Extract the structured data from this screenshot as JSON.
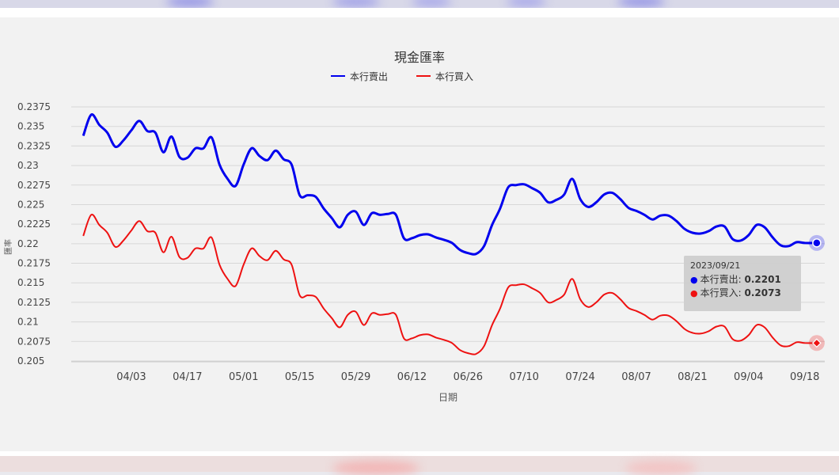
{
  "colors": {
    "sell": "#0000ee",
    "buy": "#ee1111",
    "grid": "#d7d7d7",
    "panel_bg": "#f2f2f2"
  },
  "tooltip": {
    "date": "2023/09/21",
    "sell_label": "本行賣出:",
    "sell_value": "0.2201",
    "buy_label": "本行買入:",
    "buy_value": "0.2073"
  },
  "chart_data": {
    "type": "line",
    "title": "現金匯率",
    "xlabel": "日期",
    "ylabel": "匯率",
    "ylim": [
      0.205,
      0.2375
    ],
    "y_ticks": [
      "0.2375",
      "0.235",
      "0.2325",
      "0.23",
      "0.2275",
      "0.225",
      "0.2225",
      "0.22",
      "0.2175",
      "0.215",
      "0.2125",
      "0.21",
      "0.2075",
      "0.205"
    ],
    "x_tick_labels": [
      "04/03",
      "04/17",
      "05/01",
      "05/15",
      "05/29",
      "06/12",
      "06/26",
      "07/10",
      "07/24",
      "08/07",
      "08/21",
      "09/04",
      "09/18"
    ],
    "grid": true,
    "legend_position": "top-center",
    "series": [
      {
        "name": "本行賣出",
        "x": [
          "2023/03/22",
          "2023/03/24",
          "2023/03/26",
          "2023/03/28",
          "2023/03/30",
          "2023/04/01",
          "2023/04/03",
          "2023/04/05",
          "2023/04/07",
          "2023/04/09",
          "2023/04/11",
          "2023/04/13",
          "2023/04/15",
          "2023/04/17",
          "2023/04/19",
          "2023/04/21",
          "2023/04/23",
          "2023/04/25",
          "2023/04/27",
          "2023/04/29",
          "2023/05/01",
          "2023/05/03",
          "2023/05/05",
          "2023/05/07",
          "2023/05/09",
          "2023/05/11",
          "2023/05/13",
          "2023/05/15",
          "2023/05/17",
          "2023/05/19",
          "2023/05/21",
          "2023/05/23",
          "2023/05/25",
          "2023/05/27",
          "2023/05/29",
          "2023/05/31",
          "2023/06/02",
          "2023/06/04",
          "2023/06/06",
          "2023/06/08",
          "2023/06/10",
          "2023/06/12",
          "2023/06/14",
          "2023/06/16",
          "2023/06/18",
          "2023/06/20",
          "2023/06/22",
          "2023/06/24",
          "2023/06/26",
          "2023/06/28",
          "2023/06/30",
          "2023/07/02",
          "2023/07/04",
          "2023/07/06",
          "2023/07/08",
          "2023/07/10",
          "2023/07/12",
          "2023/07/14",
          "2023/07/16",
          "2023/07/18",
          "2023/07/20",
          "2023/07/22",
          "2023/07/24",
          "2023/07/26",
          "2023/07/28",
          "2023/07/30",
          "2023/08/01",
          "2023/08/03",
          "2023/08/05",
          "2023/08/07",
          "2023/08/09",
          "2023/08/11",
          "2023/08/13",
          "2023/08/15",
          "2023/08/17",
          "2023/08/19",
          "2023/08/21",
          "2023/08/23",
          "2023/08/25",
          "2023/08/27",
          "2023/08/29",
          "2023/08/31",
          "2023/09/02",
          "2023/09/04",
          "2023/09/06",
          "2023/09/08",
          "2023/09/10",
          "2023/09/12",
          "2023/09/14",
          "2023/09/16",
          "2023/09/18",
          "2023/09/21"
        ],
        "values": [
          0.2338,
          0.2365,
          0.2352,
          0.2342,
          0.2324,
          0.2332,
          0.2345,
          0.2357,
          0.2344,
          0.2342,
          0.2317,
          0.2337,
          0.2311,
          0.231,
          0.2322,
          0.2322,
          0.2336,
          0.2301,
          0.2283,
          0.2274,
          0.2301,
          0.2322,
          0.2312,
          0.2307,
          0.2319,
          0.2308,
          0.2301,
          0.2262,
          0.2262,
          0.226,
          0.2245,
          0.2233,
          0.2221,
          0.2237,
          0.2241,
          0.2224,
          0.2239,
          0.2237,
          0.2238,
          0.2237,
          0.2207,
          0.2207,
          0.2211,
          0.2212,
          0.2208,
          0.2205,
          0.2201,
          0.2192,
          0.2188,
          0.2187,
          0.2197,
          0.2224,
          0.2245,
          0.2272,
          0.2275,
          0.2276,
          0.2271,
          0.2265,
          0.2253,
          0.2256,
          0.2263,
          0.2283,
          0.2257,
          0.2247,
          0.2253,
          0.2263,
          0.2265,
          0.2257,
          0.2246,
          0.2242,
          0.2237,
          0.2231,
          0.2236,
          0.2236,
          0.2229,
          0.2219,
          0.2214,
          0.2213,
          0.2216,
          0.2222,
          0.2222,
          0.2206,
          0.2204,
          0.2211,
          0.2224,
          0.2221,
          0.2208,
          0.2198,
          0.2197,
          0.2202,
          0.2201,
          0.2201
        ]
      },
      {
        "name": "本行買入",
        "x": [
          "2023/03/22",
          "2023/03/24",
          "2023/03/26",
          "2023/03/28",
          "2023/03/30",
          "2023/04/01",
          "2023/04/03",
          "2023/04/05",
          "2023/04/07",
          "2023/04/09",
          "2023/04/11",
          "2023/04/13",
          "2023/04/15",
          "2023/04/17",
          "2023/04/19",
          "2023/04/21",
          "2023/04/23",
          "2023/04/25",
          "2023/04/27",
          "2023/04/29",
          "2023/05/01",
          "2023/05/03",
          "2023/05/05",
          "2023/05/07",
          "2023/05/09",
          "2023/05/11",
          "2023/05/13",
          "2023/05/15",
          "2023/05/17",
          "2023/05/19",
          "2023/05/21",
          "2023/05/23",
          "2023/05/25",
          "2023/05/27",
          "2023/05/29",
          "2023/05/31",
          "2023/06/02",
          "2023/06/04",
          "2023/06/06",
          "2023/06/08",
          "2023/06/10",
          "2023/06/12",
          "2023/06/14",
          "2023/06/16",
          "2023/06/18",
          "2023/06/20",
          "2023/06/22",
          "2023/06/24",
          "2023/06/26",
          "2023/06/28",
          "2023/06/30",
          "2023/07/02",
          "2023/07/04",
          "2023/07/06",
          "2023/07/08",
          "2023/07/10",
          "2023/07/12",
          "2023/07/14",
          "2023/07/16",
          "2023/07/18",
          "2023/07/20",
          "2023/07/22",
          "2023/07/24",
          "2023/07/26",
          "2023/07/28",
          "2023/07/30",
          "2023/08/01",
          "2023/08/03",
          "2023/08/05",
          "2023/08/07",
          "2023/08/09",
          "2023/08/11",
          "2023/08/13",
          "2023/08/15",
          "2023/08/17",
          "2023/08/19",
          "2023/08/21",
          "2023/08/23",
          "2023/08/25",
          "2023/08/27",
          "2023/08/29",
          "2023/08/31",
          "2023/09/02",
          "2023/09/04",
          "2023/09/06",
          "2023/09/08",
          "2023/09/10",
          "2023/09/12",
          "2023/09/14",
          "2023/09/16",
          "2023/09/18",
          "2023/09/21"
        ],
        "values": [
          0.221,
          0.2237,
          0.2224,
          0.2214,
          0.2196,
          0.2204,
          0.2217,
          0.2229,
          0.2216,
          0.2214,
          0.2189,
          0.2209,
          0.2183,
          0.2182,
          0.2194,
          0.2194,
          0.2208,
          0.2173,
          0.2155,
          0.2146,
          0.2173,
          0.2194,
          0.2184,
          0.2179,
          0.2191,
          0.218,
          0.2173,
          0.2134,
          0.2134,
          0.2132,
          0.2117,
          0.2105,
          0.2093,
          0.2109,
          0.2113,
          0.2096,
          0.2111,
          0.2109,
          0.211,
          0.2109,
          0.2079,
          0.2079,
          0.2083,
          0.2084,
          0.208,
          0.2077,
          0.2073,
          0.2064,
          0.206,
          0.2059,
          0.2069,
          0.2096,
          0.2117,
          0.2144,
          0.2147,
          0.2148,
          0.2143,
          0.2137,
          0.2125,
          0.2128,
          0.2135,
          0.2155,
          0.2129,
          0.2119,
          0.2125,
          0.2135,
          0.2137,
          0.2129,
          0.2118,
          0.2114,
          0.2109,
          0.2103,
          0.2108,
          0.2108,
          0.2101,
          0.2091,
          0.2086,
          0.2085,
          0.2088,
          0.2094,
          0.2094,
          0.2078,
          0.2076,
          0.2083,
          0.2096,
          0.2093,
          0.208,
          0.207,
          0.2069,
          0.2074,
          0.2073,
          0.2073
        ]
      }
    ]
  }
}
